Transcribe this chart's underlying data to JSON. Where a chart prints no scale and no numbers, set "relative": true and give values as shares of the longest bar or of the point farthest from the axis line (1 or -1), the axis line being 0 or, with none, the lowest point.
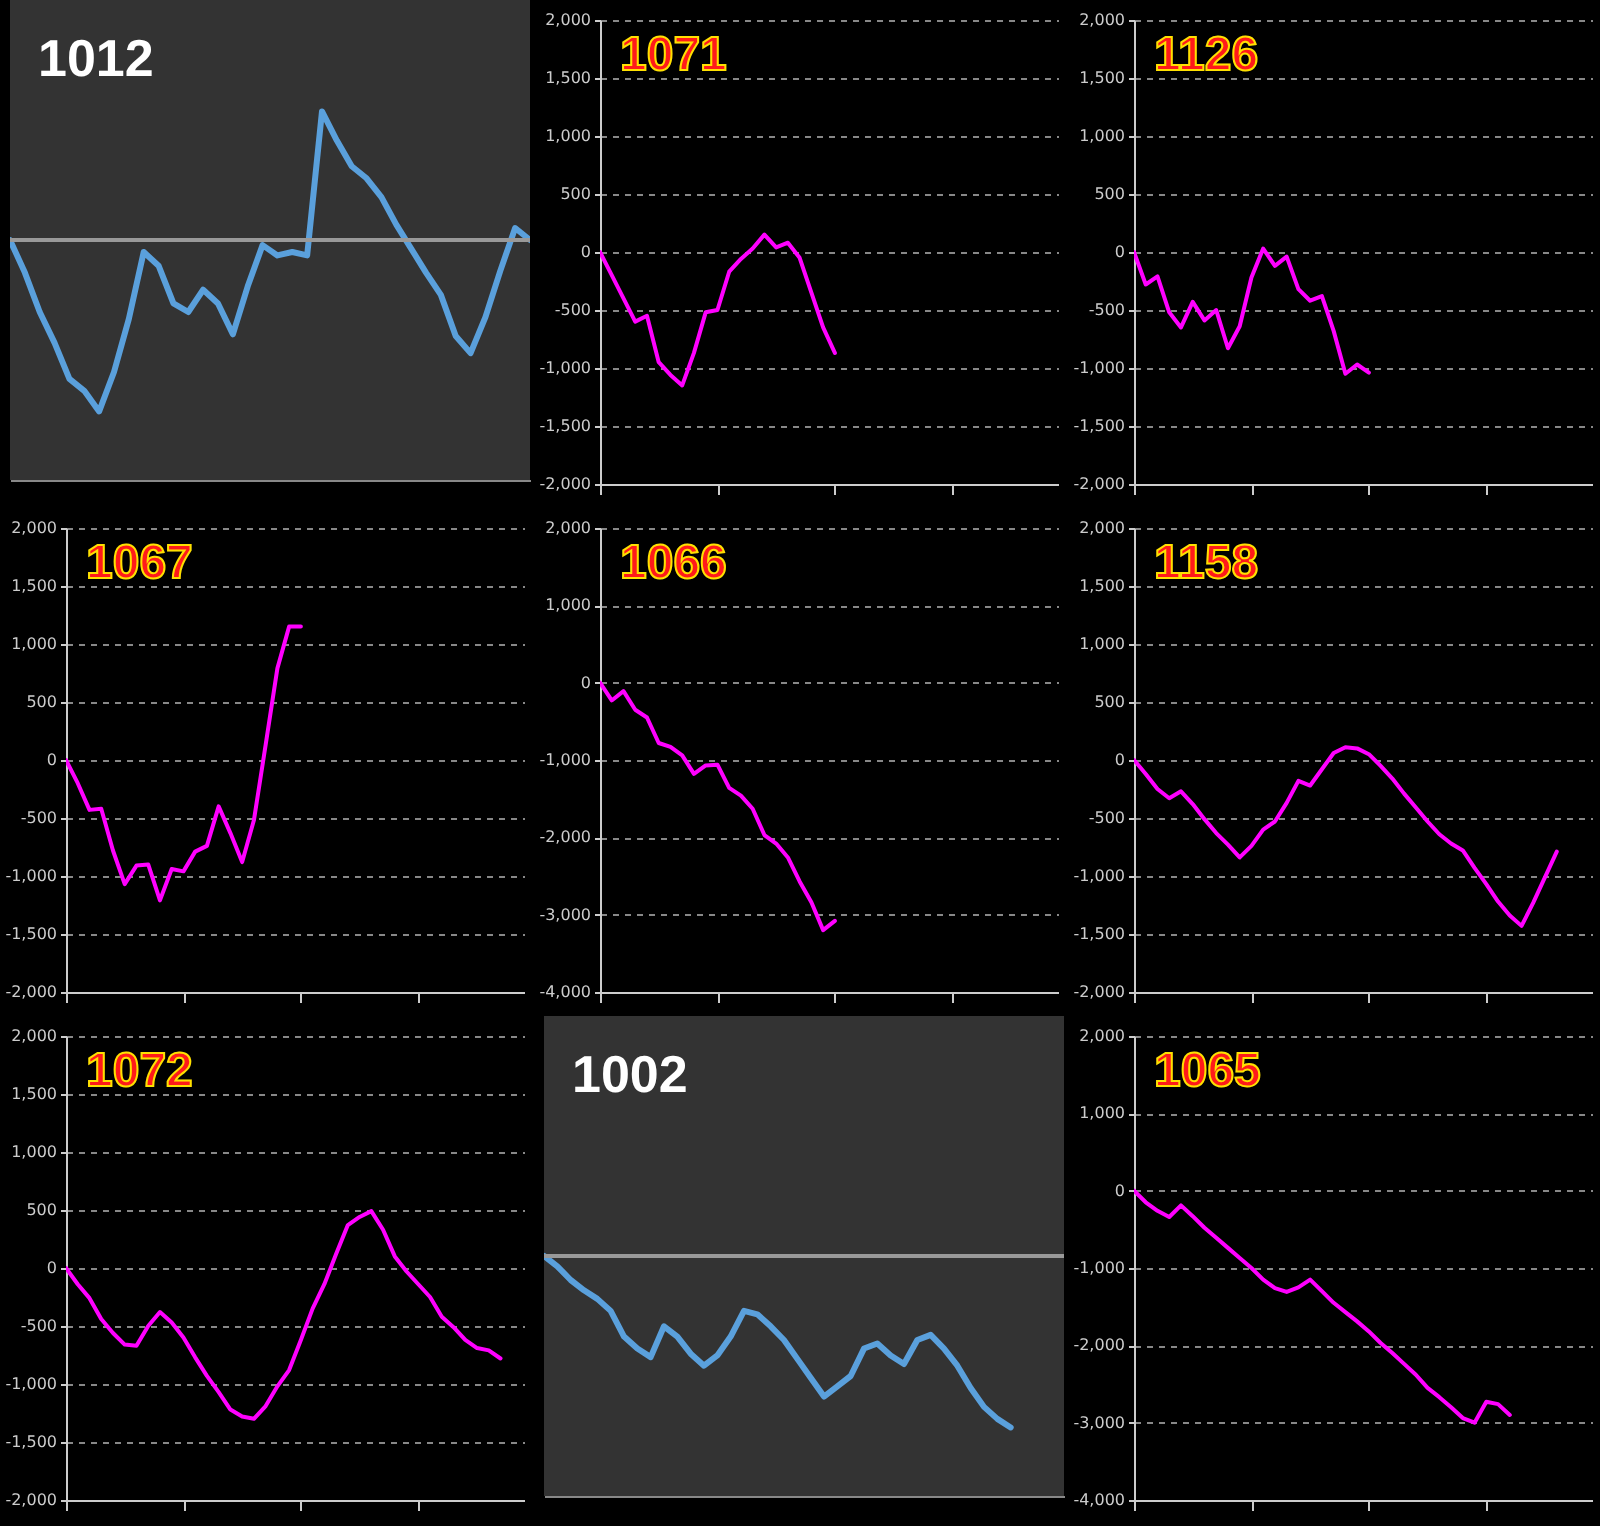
{
  "chart_data": [
    {
      "type": "line",
      "title": "1012",
      "relative": true,
      "categories": [
        null,
        null,
        null,
        null,
        null,
        null,
        null,
        null,
        null,
        null,
        null,
        null,
        null,
        null,
        null,
        null,
        null,
        null,
        null,
        null,
        null,
        null,
        null,
        null,
        null,
        null,
        null,
        null,
        null,
        null,
        null,
        null,
        null,
        null,
        null,
        null
      ],
      "series": [
        {
          "color": "#5aa0dc",
          "values": [
            0,
            -0.19,
            -0.42,
            -0.6,
            -0.81,
            -0.88,
            -1,
            -0.77,
            -0.46,
            -0.07,
            -0.15,
            -0.37,
            -0.42,
            -0.29,
            -0.37,
            -0.55,
            -0.27,
            -0.03,
            -0.09,
            -0.07,
            -0.09,
            0.75,
            0.58,
            0.43,
            0.36,
            0.25,
            0.09,
            -0.05,
            -0.19,
            -0.32,
            -0.56,
            -0.66,
            -0.45,
            -0.18,
            0.07,
            0
          ]
        }
      ]
    },
    {
      "type": "line",
      "title": "1071",
      "grid": "y",
      "tick_labels": "y",
      "categories": [
        null,
        null,
        null,
        null,
        null,
        null,
        null,
        null,
        null,
        null,
        null,
        null,
        null,
        null,
        null,
        null,
        null,
        null,
        null,
        null,
        null,
        null,
        null,
        null,
        null,
        null,
        null,
        null,
        null,
        null,
        null,
        null,
        null,
        null,
        null,
        null,
        null,
        null,
        null,
        null
      ],
      "ylim": [
        -2000,
        2000
      ],
      "yticks": [
        {
          "value": -2000,
          "label": "-2,000"
        },
        {
          "value": -1500,
          "label": "-1,500"
        },
        {
          "value": -1000,
          "label": "-1,000"
        },
        -500,
        0,
        500,
        {
          "value": 1000,
          "label": "1,000"
        },
        {
          "value": 1500,
          "label": "1,500"
        },
        {
          "value": 2000,
          "label": "2,000"
        }
      ],
      "series": [
        {
          "color": "#ff00ff",
          "values": [
            0,
            -200,
            -400,
            -600,
            -550,
            -950,
            -1060,
            -1150,
            -870,
            -520,
            -500,
            -170,
            -60,
            30,
            150,
            40,
            80,
            -50,
            -350,
            -650,
            -870,
            null,
            null,
            null,
            null,
            null,
            null,
            null,
            null,
            null,
            null,
            null,
            null,
            null,
            null,
            null,
            null,
            null,
            null,
            null
          ]
        }
      ]
    },
    {
      "type": "line",
      "title": "1126",
      "grid": "y",
      "tick_labels": "y",
      "categories": [
        null,
        null,
        null,
        null,
        null,
        null,
        null,
        null,
        null,
        null,
        null,
        null,
        null,
        null,
        null,
        null,
        null,
        null,
        null,
        null,
        null,
        null,
        null,
        null,
        null,
        null,
        null,
        null,
        null,
        null,
        null,
        null,
        null,
        null,
        null,
        null,
        null,
        null,
        null,
        null
      ],
      "ylim": [
        -2000,
        2000
      ],
      "yticks": [
        {
          "value": -2000,
          "label": "-2,000"
        },
        {
          "value": -1500,
          "label": "-1,500"
        },
        {
          "value": -1000,
          "label": "-1,000"
        },
        -500,
        0,
        500,
        {
          "value": 1000,
          "label": "1,000"
        },
        {
          "value": 1500,
          "label": "1,500"
        },
        {
          "value": 2000,
          "label": "2,000"
        }
      ],
      "series": [
        {
          "color": "#ff00ff",
          "values": [
            0,
            -280,
            -210,
            -520,
            -650,
            -430,
            -590,
            -500,
            -830,
            -640,
            -220,
            30,
            -120,
            -40,
            -320,
            -420,
            -380,
            -680,
            -1050,
            -970,
            -1040,
            null,
            null,
            null,
            null,
            null,
            null,
            null,
            null,
            null,
            null,
            null,
            null,
            null,
            null,
            null,
            null,
            null,
            null,
            null
          ]
        }
      ]
    },
    {
      "type": "line",
      "title": "1067",
      "grid": "y",
      "tick_labels": "y",
      "categories": [
        null,
        null,
        null,
        null,
        null,
        null,
        null,
        null,
        null,
        null,
        null,
        null,
        null,
        null,
        null,
        null,
        null,
        null,
        null,
        null,
        null,
        null,
        null,
        null,
        null,
        null,
        null,
        null,
        null,
        null,
        null,
        null,
        null,
        null,
        null,
        null,
        null,
        null,
        null,
        null
      ],
      "ylim": [
        -2000,
        2000
      ],
      "yticks": [
        {
          "value": -2000,
          "label": "-2,000"
        },
        {
          "value": -1500,
          "label": "-1,500"
        },
        {
          "value": -1000,
          "label": "-1,000"
        },
        -500,
        0,
        500,
        {
          "value": 1000,
          "label": "1,000"
        },
        {
          "value": 1500,
          "label": "1,500"
        },
        {
          "value": 2000,
          "label": "2,000"
        }
      ],
      "series": [
        {
          "color": "#ff00ff",
          "values": [
            0,
            -200,
            -430,
            -420,
            -780,
            -1070,
            -910,
            -900,
            -1210,
            -940,
            -960,
            -790,
            -740,
            -400,
            -630,
            -880,
            -520,
            130,
            790,
            1150,
            1150,
            null,
            null,
            null,
            null,
            null,
            null,
            null,
            null,
            null,
            null,
            null,
            null,
            null,
            null,
            null,
            null,
            null,
            null,
            null
          ]
        }
      ]
    },
    {
      "type": "line",
      "title": "1066",
      "grid": "y",
      "tick_labels": "y",
      "categories": [
        null,
        null,
        null,
        null,
        null,
        null,
        null,
        null,
        null,
        null,
        null,
        null,
        null,
        null,
        null,
        null,
        null,
        null,
        null,
        null,
        null,
        null,
        null,
        null,
        null,
        null,
        null,
        null,
        null,
        null,
        null,
        null,
        null,
        null,
        null,
        null,
        null,
        null,
        null,
        null
      ],
      "ylim": [
        -4000,
        2000
      ],
      "yticks": [
        {
          "value": -4000,
          "label": "-4,000"
        },
        {
          "value": -3000,
          "label": "-3,000"
        },
        {
          "value": -2000,
          "label": "-2,000"
        },
        {
          "value": -1000,
          "label": "-1,000"
        },
        0,
        {
          "value": 1000,
          "label": "1,000"
        },
        {
          "value": 2000,
          "label": "2,000"
        }
      ],
      "series": [
        {
          "color": "#ff00ff",
          "values": [
            0,
            -230,
            -110,
            -350,
            -450,
            -780,
            -830,
            -940,
            -1180,
            -1070,
            -1060,
            -1360,
            -1460,
            -1630,
            -1970,
            -2080,
            -2260,
            -2570,
            -2840,
            -3200,
            -3080,
            null,
            null,
            null,
            null,
            null,
            null,
            null,
            null,
            null,
            null,
            null,
            null,
            null,
            null,
            null,
            null,
            null,
            null,
            null
          ]
        }
      ]
    },
    {
      "type": "line",
      "title": "1158",
      "grid": "y",
      "tick_labels": "y",
      "categories": [
        null,
        null,
        null,
        null,
        null,
        null,
        null,
        null,
        null,
        null,
        null,
        null,
        null,
        null,
        null,
        null,
        null,
        null,
        null,
        null,
        null,
        null,
        null,
        null,
        null,
        null,
        null,
        null,
        null,
        null,
        null,
        null,
        null,
        null,
        null,
        null,
        null,
        null,
        null,
        null
      ],
      "ylim": [
        -2000,
        2000
      ],
      "yticks": [
        {
          "value": -2000,
          "label": "-2,000"
        },
        {
          "value": -1500,
          "label": "-1,500"
        },
        {
          "value": -1000,
          "label": "-1,000"
        },
        -500,
        0,
        500,
        {
          "value": 1000,
          "label": "1,000"
        },
        {
          "value": 1500,
          "label": "1,500"
        },
        {
          "value": 2000,
          "label": "2,000"
        }
      ],
      "series": [
        {
          "color": "#ff00ff",
          "values": [
            0,
            -120,
            -250,
            -330,
            -270,
            -380,
            -510,
            -630,
            -730,
            -840,
            -740,
            -600,
            -530,
            -370,
            -180,
            -220,
            -80,
            60,
            110,
            100,
            50,
            -50,
            -160,
            -290,
            -410,
            -530,
            -640,
            -720,
            -780,
            -930,
            -1070,
            -1220,
            -1340,
            -1430,
            -1230,
            -1010,
            -790,
            null,
            null,
            null
          ]
        }
      ]
    },
    {
      "type": "line",
      "title": "1072",
      "grid": "y",
      "tick_labels": "y",
      "categories": [
        null,
        null,
        null,
        null,
        null,
        null,
        null,
        null,
        null,
        null,
        null,
        null,
        null,
        null,
        null,
        null,
        null,
        null,
        null,
        null,
        null,
        null,
        null,
        null,
        null,
        null,
        null,
        null,
        null,
        null,
        null,
        null,
        null,
        null,
        null,
        null,
        null,
        null,
        null,
        null
      ],
      "ylim": [
        -2000,
        2000
      ],
      "yticks": [
        {
          "value": -2000,
          "label": "-2,000"
        },
        {
          "value": -1500,
          "label": "-1,500"
        },
        {
          "value": -1000,
          "label": "-1,000"
        },
        -500,
        0,
        500,
        {
          "value": 1000,
          "label": "1,000"
        },
        {
          "value": 1500,
          "label": "1,500"
        },
        {
          "value": 2000,
          "label": "2,000"
        }
      ],
      "series": [
        {
          "color": "#ff00ff",
          "values": [
            0,
            -140,
            -260,
            -440,
            -560,
            -660,
            -670,
            -500,
            -380,
            -470,
            -600,
            -770,
            -930,
            -1070,
            -1220,
            -1280,
            -1300,
            -1190,
            -1020,
            -880,
            -620,
            -350,
            -140,
            120,
            370,
            440,
            490,
            330,
            100,
            -30,
            -140,
            -250,
            -420,
            -510,
            -620,
            -690,
            -710,
            -780,
            null,
            null
          ]
        }
      ]
    },
    {
      "type": "line",
      "title": "1002",
      "relative": true,
      "categories": [
        null,
        null,
        null,
        null,
        null,
        null,
        null,
        null,
        null,
        null,
        null,
        null,
        null,
        null,
        null,
        null,
        null,
        null,
        null,
        null,
        null,
        null,
        null,
        null,
        null,
        null,
        null,
        null,
        null,
        null,
        null,
        null,
        null,
        null,
        null,
        null,
        null,
        null,
        null,
        null
      ],
      "series": [
        {
          "color": "#5aa0dc",
          "values": [
            0,
            -0.06,
            -0.14,
            -0.2,
            -0.25,
            -0.32,
            -0.47,
            -0.54,
            -0.59,
            -0.41,
            -0.47,
            -0.57,
            -0.64,
            -0.58,
            -0.47,
            -0.32,
            -0.34,
            -0.41,
            -0.49,
            -0.6,
            -0.71,
            -0.82,
            -0.76,
            -0.7,
            -0.54,
            -0.51,
            -0.58,
            -0.63,
            -0.49,
            -0.46,
            -0.54,
            -0.64,
            -0.77,
            -0.88,
            -0.95,
            -1,
            null,
            null,
            null,
            null
          ]
        }
      ]
    },
    {
      "type": "line",
      "title": "1065",
      "grid": "y",
      "tick_labels": "y",
      "categories": [
        null,
        null,
        null,
        null,
        null,
        null,
        null,
        null,
        null,
        null,
        null,
        null,
        null,
        null,
        null,
        null,
        null,
        null,
        null,
        null,
        null,
        null,
        null,
        null,
        null,
        null,
        null,
        null,
        null,
        null,
        null,
        null,
        null,
        null,
        null,
        null,
        null,
        null,
        null,
        null
      ],
      "ylim": [
        -4000,
        2000
      ],
      "yticks": [
        {
          "value": -4000,
          "label": "-4,000"
        },
        {
          "value": -3000,
          "label": "-3,000"
        },
        {
          "value": -2000,
          "label": "-2,000"
        },
        {
          "value": -1000,
          "label": "-1,000"
        },
        0,
        {
          "value": 1000,
          "label": "1,000"
        },
        {
          "value": 2000,
          "label": "2,000"
        }
      ],
      "series": [
        {
          "color": "#ff00ff",
          "values": [
            0,
            -150,
            -260,
            -340,
            -190,
            -330,
            -480,
            -610,
            -740,
            -870,
            -1000,
            -1150,
            -1260,
            -1310,
            -1250,
            -1150,
            -1300,
            -1450,
            -1570,
            -1690,
            -1820,
            -1970,
            -2100,
            -2240,
            -2380,
            -2550,
            -2670,
            -2800,
            -2940,
            -3000,
            -2730,
            -2760,
            -2900,
            null,
            null,
            null,
            null,
            null,
            null,
            null
          ]
        }
      ]
    }
  ]
}
